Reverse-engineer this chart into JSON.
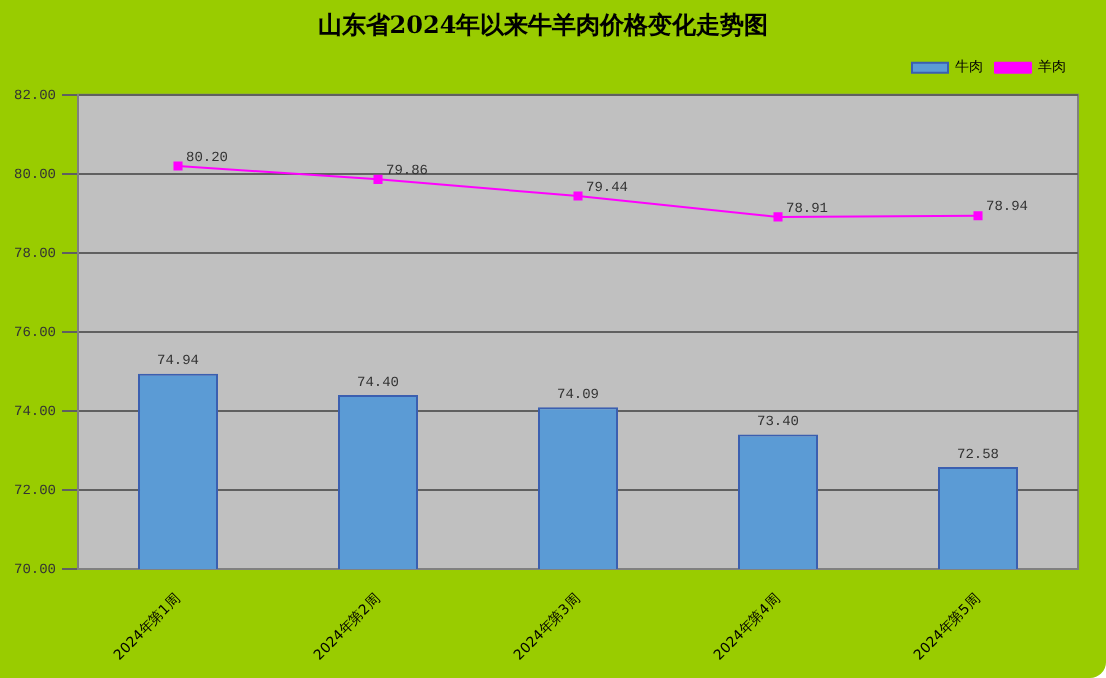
{
  "chart_data": {
    "type": "bar",
    "title": "山东省2024年以来牛羊肉价格变化走势图",
    "categories": [
      "2024年第1周",
      "2024年第2周",
      "2024年第3周",
      "2024年第4周",
      "2024年第5周"
    ],
    "series": [
      {
        "name": "牛肉",
        "color": "#5b9bd5",
        "values": [
          74.94,
          74.4,
          74.09,
          73.4,
          72.58
        ],
        "value_labels": [
          "74.94",
          "74.40",
          "74.09",
          "73.40",
          "72.58"
        ]
      },
      {
        "name": "羊肉",
        "type": "line",
        "color": "#ff00ff",
        "values": [
          80.2,
          79.86,
          79.44,
          78.91,
          78.94
        ],
        "value_labels": [
          "80.20",
          "79.86",
          "79.44",
          "78.91",
          "78.94"
        ]
      }
    ],
    "ylim": [
      70,
      82
    ],
    "yticks": [
      {
        "value": 70,
        "label": "70.00"
      },
      {
        "value": 72,
        "label": "72.00"
      },
      {
        "value": 74,
        "label": "74.00"
      },
      {
        "value": 76,
        "label": "76.00"
      },
      {
        "value": 78,
        "label": "78.00"
      },
      {
        "value": 80,
        "label": "80.00"
      },
      {
        "value": 82,
        "label": "82.00"
      }
    ],
    "grid": "y",
    "legend": "top right",
    "marker": "square"
  }
}
